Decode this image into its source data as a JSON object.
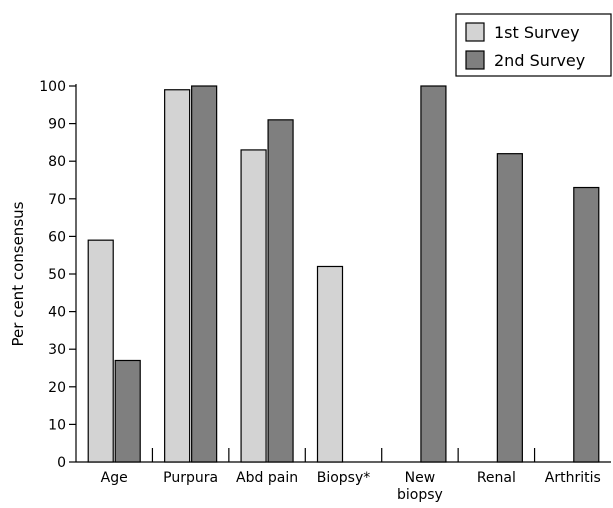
{
  "chart_data": {
    "type": "bar",
    "categories": [
      "Age",
      "Purpura",
      "Abd pain",
      "Biopsy*",
      "New biopsy",
      "Renal",
      "Arthritis"
    ],
    "category_lines": [
      [
        "Age"
      ],
      [
        "Purpura"
      ],
      [
        "Abd pain"
      ],
      [
        "Biopsy*"
      ],
      [
        "New",
        "biopsy"
      ],
      [
        "Renal"
      ],
      [
        "Arthritis"
      ]
    ],
    "series": [
      {
        "name": "1st Survey",
        "color": "#d3d3d3",
        "values": [
          59,
          99,
          83,
          52,
          null,
          null,
          null
        ]
      },
      {
        "name": "2nd Survey",
        "color": "#7f7f7f",
        "values": [
          27,
          100,
          91,
          null,
          100,
          82,
          73
        ]
      }
    ],
    "title": "",
    "xlabel": "",
    "ylabel": "Per cent consensus",
    "ylim": [
      0,
      100
    ],
    "yticks": [
      0,
      10,
      20,
      30,
      40,
      50,
      60,
      70,
      80,
      90,
      100
    ],
    "grid": false,
    "legend_position": "top-right"
  }
}
